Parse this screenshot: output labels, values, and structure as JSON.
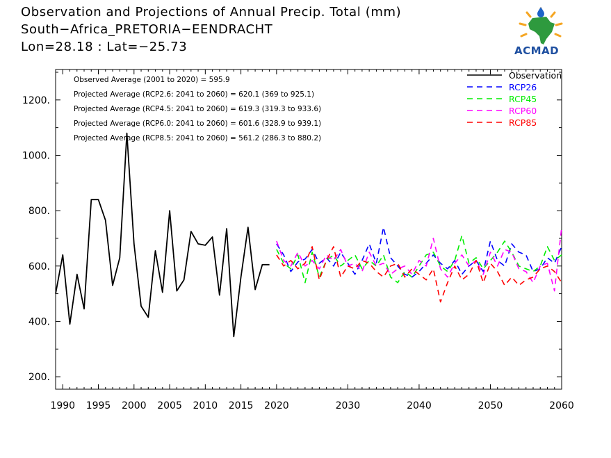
{
  "header": {
    "title_line1": "Observation and Projections of Annual Precip. Total (mm)",
    "title_line2": "South−Africa_PRETORIA−EENDRACHT",
    "title_line3": "Lon=28.18 : Lat=−25.73"
  },
  "logo": {
    "text": "ACMAD"
  },
  "chart_data": {
    "type": "line",
    "title": "Observation and Projections of Annual Precip. Total (mm)",
    "xlabel": "",
    "ylabel": "",
    "xlim": [
      1989,
      2060
    ],
    "ylim": [
      155,
      1310
    ],
    "x_ticks": [
      1990,
      1995,
      2000,
      2005,
      2010,
      2015,
      2020,
      2030,
      2040,
      2050,
      2060
    ],
    "x_tick_labels": [
      "1990",
      "1995",
      "2000",
      "2005",
      "2010",
      "2015",
      "2020",
      "2030",
      "2040",
      "2050",
      "2060"
    ],
    "y_ticks": [
      200,
      400,
      600,
      800,
      1000,
      1200
    ],
    "y_tick_labels": [
      "200.",
      "400.",
      "600.",
      "800.",
      "1000.",
      "1200."
    ],
    "legend_position": "top-right",
    "annotations": [
      "Observed Average (2001 to 2020) = 595.9",
      "Projected Average (RCP2.6: 2041 to 2060) = 620.1 (369 to 925.1)",
      "Projected Average (RCP4.5: 2041 to 2060) = 619.3 (319.3 to 933.6)",
      "Projected Average (RCP6.0: 2041 to 2060) = 601.6 (328.9 to 939.1)",
      "Projected Average (RCP8.5: 2041 to 2060) = 561.2 (286.3 to 880.2)"
    ],
    "series": [
      {
        "name": "Observation",
        "color": "#000000",
        "dashed": false,
        "x": [
          1989,
          1990,
          1991,
          1992,
          1993,
          1994,
          1995,
          1996,
          1997,
          1998,
          1999,
          2000,
          2001,
          2002,
          2003,
          2004,
          2005,
          2006,
          2007,
          2008,
          2009,
          2010,
          2011,
          2012,
          2013,
          2014,
          2015,
          2016,
          2017,
          2018,
          2019
        ],
        "y": [
          500,
          640,
          390,
          570,
          445,
          840,
          840,
          765,
          530,
          630,
          1080,
          680,
          455,
          415,
          655,
          505,
          800,
          510,
          550,
          725,
          680,
          675,
          705,
          495,
          735,
          345,
          560,
          740,
          515,
          605,
          605
        ]
      },
      {
        "name": "RCP26",
        "color": "#0000ff",
        "dashed": true,
        "x": [
          2020,
          2021,
          2022,
          2023,
          2024,
          2025,
          2026,
          2027,
          2028,
          2029,
          2030,
          2031,
          2032,
          2033,
          2034,
          2035,
          2036,
          2037,
          2038,
          2039,
          2040,
          2041,
          2042,
          2043,
          2044,
          2045,
          2046,
          2047,
          2048,
          2049,
          2050,
          2051,
          2052,
          2053,
          2054,
          2055,
          2056,
          2057,
          2058,
          2059,
          2060
        ],
        "y": [
          680,
          640,
          580,
          615,
          625,
          660,
          610,
          630,
          600,
          650,
          610,
          570,
          620,
          680,
          610,
          740,
          630,
          600,
          570,
          560,
          580,
          610,
          640,
          610,
          590,
          620,
          570,
          600,
          620,
          580,
          690,
          620,
          600,
          680,
          650,
          640,
          580,
          590,
          630,
          610,
          670
        ]
      },
      {
        "name": "RCP45",
        "color": "#00ee00",
        "dashed": true,
        "x": [
          2020,
          2021,
          2022,
          2023,
          2024,
          2025,
          2026,
          2027,
          2028,
          2029,
          2030,
          2031,
          2032,
          2033,
          2034,
          2035,
          2036,
          2037,
          2038,
          2039,
          2040,
          2041,
          2042,
          2043,
          2044,
          2045,
          2046,
          2047,
          2048,
          2049,
          2050,
          2051,
          2052,
          2053,
          2054,
          2055,
          2056,
          2057,
          2058,
          2059,
          2060
        ],
        "y": [
          660,
          610,
          590,
          640,
          540,
          650,
          560,
          620,
          640,
          600,
          620,
          640,
          590,
          620,
          600,
          640,
          560,
          540,
          580,
          560,
          600,
          640,
          650,
          600,
          580,
          620,
          710,
          610,
          630,
          590,
          620,
          650,
          690,
          650,
          600,
          590,
          580,
          600,
          670,
          620,
          640
        ]
      },
      {
        "name": "RCP60",
        "color": "#ff00ff",
        "dashed": true,
        "x": [
          2020,
          2021,
          2022,
          2023,
          2024,
          2025,
          2026,
          2027,
          2028,
          2029,
          2030,
          2031,
          2032,
          2033,
          2034,
          2035,
          2036,
          2037,
          2038,
          2039,
          2040,
          2041,
          2042,
          2043,
          2044,
          2045,
          2046,
          2047,
          2048,
          2049,
          2050,
          2051,
          2052,
          2053,
          2054,
          2055,
          2056,
          2057,
          2058,
          2059,
          2060
        ],
        "y": [
          690,
          620,
          600,
          650,
          600,
          620,
          590,
          640,
          620,
          660,
          600,
          610,
          580,
          650,
          600,
          610,
          570,
          590,
          600,
          570,
          620,
          600,
          700,
          590,
          560,
          610,
          640,
          600,
          620,
          570,
          650,
          600,
          660,
          650,
          590,
          580,
          540,
          600,
          610,
          510,
          740
        ]
      },
      {
        "name": "RCP85",
        "color": "#ff0000",
        "dashed": true,
        "x": [
          2020,
          2021,
          2022,
          2023,
          2024,
          2025,
          2026,
          2027,
          2028,
          2029,
          2030,
          2031,
          2032,
          2033,
          2034,
          2035,
          2036,
          2037,
          2038,
          2039,
          2040,
          2041,
          2042,
          2043,
          2044,
          2045,
          2046,
          2047,
          2048,
          2049,
          2050,
          2051,
          2052,
          2053,
          2054,
          2055,
          2056,
          2057,
          2058,
          2059,
          2060
        ],
        "y": [
          640,
          600,
          620,
          590,
          610,
          670,
          550,
          620,
          670,
          560,
          600,
          590,
          620,
          610,
          580,
          560,
          600,
          610,
          560,
          590,
          570,
          550,
          590,
          470,
          540,
          600,
          550,
          570,
          620,
          540,
          610,
          580,
          530,
          560,
          530,
          550,
          560,
          590,
          600,
          580,
          540
        ]
      }
    ]
  }
}
